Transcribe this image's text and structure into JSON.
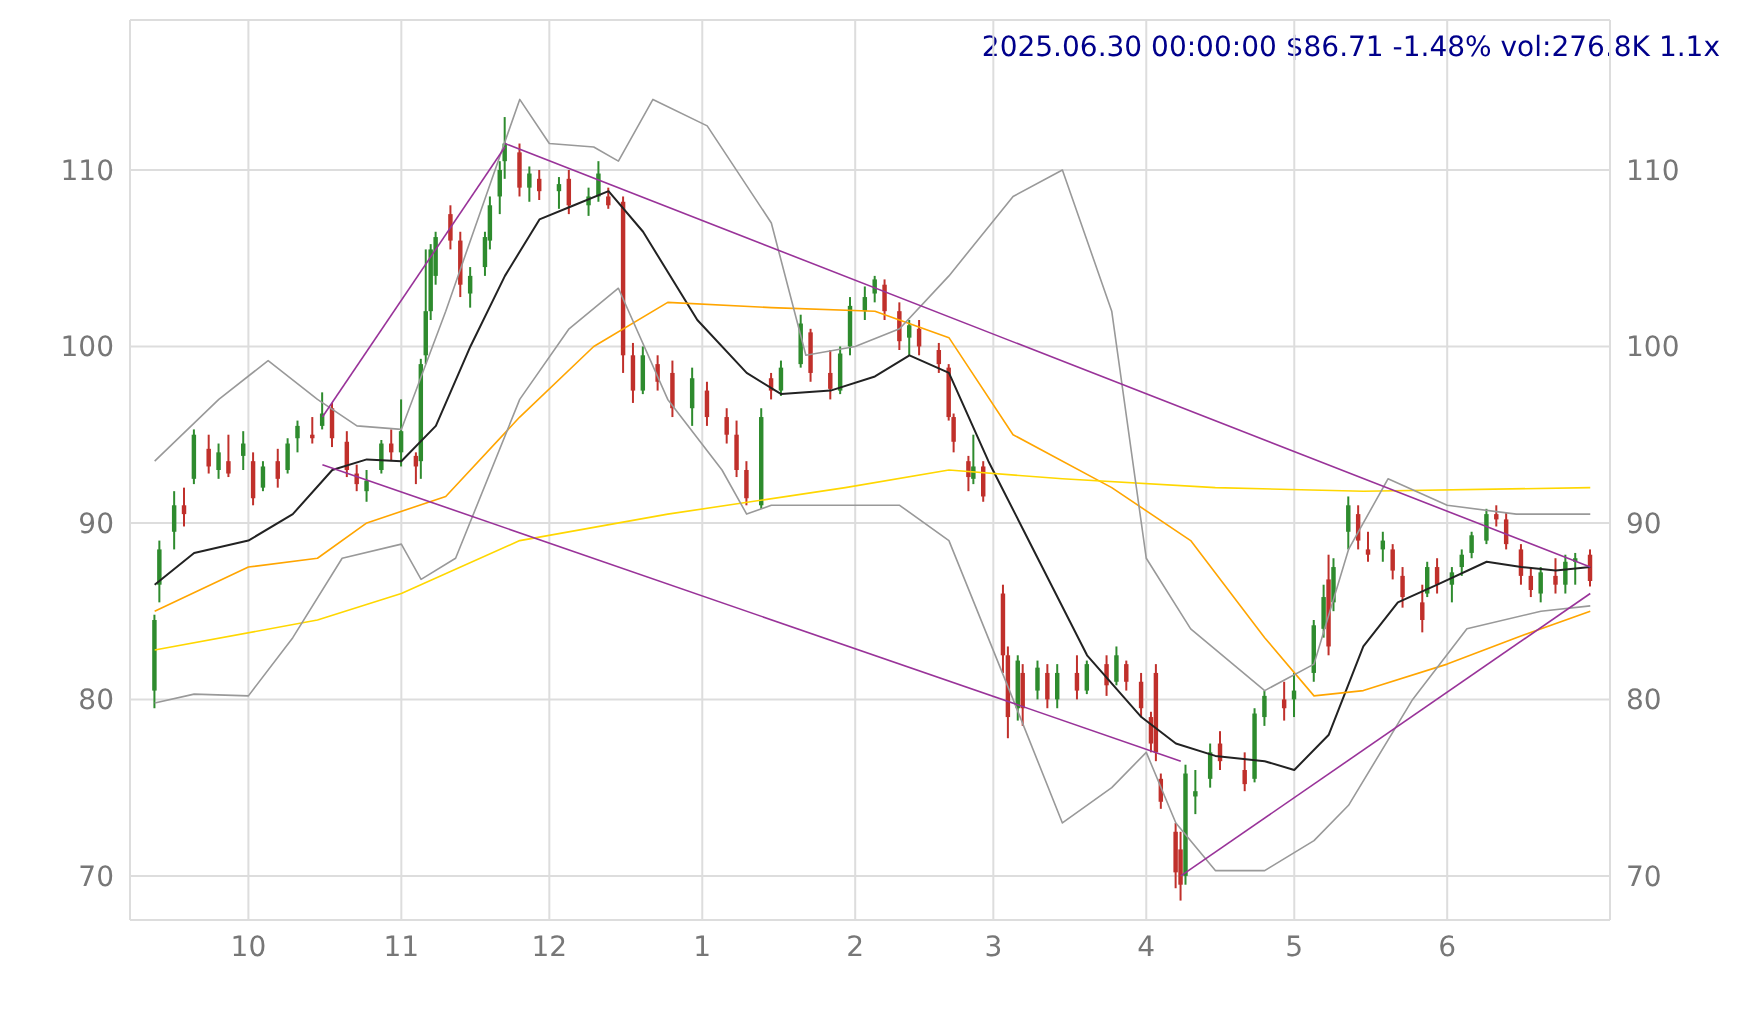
{
  "chart_data": {
    "type": "candlestick",
    "title": "2025.06.30 00:00:00 $86.71 -1.48% vol:276.8K 1.1x",
    "colors": [
      "#2e8b2e",
      "#2e8b2e",
      "#2e8b2e",
      "#c0302b",
      "#2e8b2e",
      "#c0302b",
      "#2e8b2e",
      "#c0302b",
      "#2e8b2e",
      "#c0302b",
      "#2e8b2e",
      "#c0302b",
      "#2e8b2e",
      "#2e8b2e",
      "#c0302b",
      "#2e8b2e",
      "#c0302b",
      "#c0302b",
      "#c0302b",
      "#2e8b2e",
      "#2e8b2e",
      "#c0302b",
      "#2e8b2e",
      "#c0302b",
      "#2e8b2e",
      "#2e8b2e",
      "#2e8b2e",
      "#2e8b2e",
      "#c0302b",
      "#c0302b",
      "#2e8b2e",
      "#2e8b2e",
      "#2e8b2e",
      "#2e8b2e",
      "#2e8b2e",
      "#c0302b",
      "#2e8b2e",
      "#c0302b",
      "#2e8b2e",
      "#c0302b",
      "#2e8b2e",
      "#2e8b2e",
      "#c0302b",
      "#c0302b",
      "#c0302b",
      "#2e8b2e",
      "#c0302b",
      "#c0302b",
      "#2e8b2e",
      "#c0302b",
      "#c0302b",
      "#c0302b",
      "#c0302b",
      "#2e8b2e",
      "#c0302b",
      "#2e8b2e",
      "#2e8b2e",
      "#c0302b",
      "#c0302b",
      "#2e8b2e",
      "#2e8b2e",
      "#2e8b2e",
      "#2e8b2e",
      "#c0302b",
      "#c0302b",
      "#2e8b2e",
      "#c0302b",
      "#c0302b",
      "#c0302b",
      "#c0302b",
      "#c0302b",
      "#2e8b2e",
      "#c0302b",
      "#c0302b",
      "#c0302b",
      "#2e8b2e",
      "#c0302b",
      "#2e8b2e",
      "#c0302b",
      "#2e8b2e",
      "#c0302b",
      "#2e8b2e",
      "#c0302b",
      "#2e8b2e",
      "#c0302b",
      "#c0302b",
      "#c0302b",
      "#c0302b",
      "#c0302b",
      "#c0302b",
      "#c0302b",
      "#2e8b2e",
      "#2e8b2e",
      "#2e8b2e",
      "#c0302b",
      "#c0302b",
      "#2e8b2e",
      "#2e8b2e",
      "#c0302b",
      "#2e8b2e",
      "#2e8b2e",
      "#2e8b2e",
      "#c0302b",
      "#2e8b2e",
      "#2e8b2e",
      "#c0302b",
      "#c0302b",
      "#2e8b2e",
      "#c0302b",
      "#c0302b",
      "#c0302b",
      "#2e8b2e",
      "#c0302b",
      "#2e8b2e",
      "#2e8b2e",
      "#2e8b2e",
      "#2e8b2e",
      "#c0302b",
      "#c0302b",
      "#c0302b",
      "#c0302b",
      "#2e8b2e",
      "#c0302b",
      "#2e8b2e",
      "#2e8b2e",
      "#c0302b"
    ],
    "x": [
      "2024-09-12",
      "2024-09-13",
      "2024-09-16",
      "2024-09-18",
      "2024-09-20",
      "2024-09-23",
      "2024-09-25",
      "2024-09-27",
      "2024-09-30",
      "2024-10-02",
      "2024-10-04",
      "2024-10-07",
      "2024-10-09",
      "2024-10-11",
      "2024-10-14",
      "2024-10-16",
      "2024-10-18",
      "2024-10-21",
      "2024-10-23",
      "2024-10-25",
      "2024-10-28",
      "2024-10-30",
      "2024-11-01",
      "2024-11-04",
      "2024-11-05",
      "2024-11-06",
      "2024-11-07",
      "2024-11-08",
      "2024-11-11",
      "2024-11-13",
      "2024-11-15",
      "2024-11-18",
      "2024-11-19",
      "2024-11-21",
      "2024-11-22",
      "2024-11-25",
      "2024-11-27",
      "2024-11-29",
      "2024-12-03",
      "2024-12-05",
      "2024-12-09",
      "2024-12-11",
      "2024-12-13",
      "2024-12-16",
      "2024-12-18",
      "2024-12-20",
      "2024-12-23",
      "2024-12-26",
      "2024-12-30",
      "2025-01-02",
      "2025-01-06",
      "2025-01-08",
      "2025-01-10",
      "2025-01-13",
      "2025-01-15",
      "2025-01-17",
      "2025-01-21",
      "2025-01-23",
      "2025-01-27",
      "2025-01-29",
      "2025-01-31",
      "2025-02-03",
      "2025-02-05",
      "2025-02-07",
      "2025-02-10",
      "2025-02-12",
      "2025-02-14",
      "2025-02-18",
      "2025-02-20",
      "2025-02-21",
      "2025-02-24",
      "2025-02-25",
      "2025-02-27",
      "2025-03-03",
      "2025-03-04",
      "2025-03-06",
      "2025-03-07",
      "2025-03-10",
      "2025-03-12",
      "2025-03-14",
      "2025-03-18",
      "2025-03-20",
      "2025-03-24",
      "2025-03-26",
      "2025-03-28",
      "2025-03-31",
      "2025-04-02",
      "2025-04-03",
      "2025-04-04",
      "2025-04-07",
      "2025-04-08",
      "2025-04-09",
      "2025-04-11",
      "2025-04-14",
      "2025-04-16",
      "2025-04-21",
      "2025-04-23",
      "2025-04-25",
      "2025-04-29",
      "2025-05-01",
      "2025-05-05",
      "2025-05-07",
      "2025-05-08",
      "2025-05-09",
      "2025-05-12",
      "2025-05-14",
      "2025-05-16",
      "2025-05-19",
      "2025-05-21",
      "2025-05-23",
      "2025-05-27",
      "2025-05-28",
      "2025-05-30",
      "2025-06-02",
      "2025-06-04",
      "2025-06-06",
      "2025-06-09",
      "2025-06-11",
      "2025-06-13",
      "2025-06-16",
      "2025-06-18",
      "2025-06-20",
      "2025-06-23",
      "2025-06-25",
      "2025-06-27",
      "2025-06-30"
    ],
    "ohlc": [
      [
        80.5,
        84.8,
        79.5,
        84.5
      ],
      [
        86.5,
        89.0,
        85.5,
        88.5
      ],
      [
        89.5,
        91.8,
        88.5,
        91.0
      ],
      [
        91.0,
        92.0,
        89.8,
        90.5
      ],
      [
        92.5,
        95.3,
        92.2,
        95.0
      ],
      [
        94.2,
        95.0,
        92.8,
        93.2
      ],
      [
        93.0,
        94.5,
        92.5,
        94.0
      ],
      [
        93.5,
        95.0,
        92.6,
        92.8
      ],
      [
        93.8,
        95.2,
        93.0,
        94.5
      ],
      [
        93.5,
        94.0,
        91.0,
        91.4
      ],
      [
        92.0,
        93.5,
        91.8,
        93.2
      ],
      [
        93.5,
        94.2,
        92.0,
        92.5
      ],
      [
        93.0,
        94.8,
        92.8,
        94.5
      ],
      [
        94.8,
        95.8,
        94.0,
        95.5
      ],
      [
        95.0,
        96.0,
        94.5,
        94.8
      ],
      [
        95.5,
        97.4,
        95.3,
        96.2
      ],
      [
        96.5,
        96.8,
        94.3,
        94.8
      ],
      [
        94.6,
        95.2,
        92.6,
        93.0
      ],
      [
        92.8,
        93.3,
        91.8,
        92.2
      ],
      [
        91.8,
        93.0,
        91.2,
        92.4
      ],
      [
        93.0,
        94.7,
        92.8,
        94.5
      ],
      [
        94.5,
        95.3,
        93.5,
        94.0
      ],
      [
        94.0,
        97.0,
        93.2,
        95.2
      ],
      [
        93.8,
        94.0,
        92.2,
        93.2
      ],
      [
        93.5,
        99.3,
        92.5,
        99.0
      ],
      [
        99.5,
        105.5,
        99.0,
        102.0
      ],
      [
        102.0,
        105.8,
        101.5,
        105.5
      ],
      [
        104.0,
        106.5,
        103.5,
        106.2
      ],
      [
        107.5,
        108.0,
        105.5,
        106.0
      ],
      [
        106.0,
        106.5,
        102.8,
        103.5
      ],
      [
        103.0,
        104.5,
        102.2,
        104.0
      ],
      [
        104.5,
        106.5,
        104.0,
        106.2
      ],
      [
        106.0,
        108.5,
        105.5,
        108.0
      ],
      [
        108.5,
        110.5,
        107.5,
        110.0
      ],
      [
        110.5,
        113.0,
        109.5,
        111.5
      ],
      [
        111.0,
        111.5,
        108.5,
        109.0
      ],
      [
        109.0,
        110.2,
        108.2,
        109.8
      ],
      [
        109.5,
        110.0,
        108.3,
        108.8
      ],
      [
        108.8,
        109.6,
        107.8,
        109.2
      ],
      [
        109.5,
        110.0,
        107.5,
        108.0
      ],
      [
        108.0,
        109.0,
        107.4,
        108.5
      ],
      [
        108.5,
        110.5,
        108.2,
        109.8
      ],
      [
        108.5,
        109.0,
        107.8,
        108.0
      ],
      [
        108.2,
        108.5,
        98.5,
        99.5
      ],
      [
        99.5,
        100.2,
        96.8,
        97.5
      ],
      [
        97.5,
        100.0,
        97.3,
        99.5
      ],
      [
        99.0,
        99.5,
        97.5,
        98.0
      ],
      [
        98.5,
        99.2,
        96.0,
        96.5
      ],
      [
        96.5,
        98.8,
        95.5,
        98.2
      ],
      [
        97.5,
        98.0,
        95.5,
        96.0
      ],
      [
        96.0,
        96.5,
        94.5,
        95.0
      ],
      [
        95.0,
        95.8,
        92.6,
        93.0
      ],
      [
        93.0,
        93.5,
        91.0,
        91.4
      ],
      [
        91.0,
        96.5,
        90.8,
        96.0
      ],
      [
        98.2,
        98.5,
        97.0,
        97.5
      ],
      [
        97.5,
        99.2,
        97.2,
        98.8
      ],
      [
        99.0,
        101.8,
        98.8,
        101.3
      ],
      [
        100.8,
        101.0,
        98.0,
        98.5
      ],
      [
        98.5,
        99.8,
        97.0,
        97.6
      ],
      [
        97.5,
        100.0,
        97.3,
        99.6
      ],
      [
        100.0,
        102.8,
        99.5,
        102.3
      ],
      [
        102.0,
        103.4,
        101.5,
        102.8
      ],
      [
        103.0,
        104.0,
        102.5,
        103.8
      ],
      [
        103.5,
        103.8,
        101.5,
        102.0
      ],
      [
        102.0,
        102.5,
        99.8,
        100.3
      ],
      [
        100.5,
        101.5,
        99.5,
        101.2
      ],
      [
        101.0,
        101.5,
        99.5,
        100.0
      ],
      [
        99.8,
        100.2,
        98.5,
        99.0
      ],
      [
        98.8,
        99.0,
        95.8,
        96.0
      ],
      [
        96.0,
        96.2,
        94.0,
        94.6
      ],
      [
        93.5,
        93.8,
        91.8,
        92.6
      ],
      [
        92.5,
        95.0,
        92.2,
        93.2
      ],
      [
        93.2,
        93.5,
        91.2,
        91.5
      ],
      [
        86.0,
        86.5,
        81.5,
        82.5
      ],
      [
        82.5,
        83.0,
        77.8,
        79.0
      ],
      [
        79.5,
        82.5,
        78.8,
        82.2
      ],
      [
        81.5,
        82.0,
        78.5,
        79.5
      ],
      [
        80.5,
        82.2,
        80.0,
        81.8
      ],
      [
        81.5,
        82.0,
        79.5,
        80.0
      ],
      [
        80.0,
        82.0,
        79.5,
        81.5
      ],
      [
        81.5,
        82.5,
        80.0,
        80.5
      ],
      [
        80.5,
        82.2,
        80.3,
        82.0
      ],
      [
        82.0,
        82.5,
        80.2,
        80.8
      ],
      [
        81.0,
        83.0,
        80.8,
        82.5
      ],
      [
        82.0,
        82.2,
        80.5,
        81.0
      ],
      [
        81.0,
        81.5,
        79.0,
        79.5
      ],
      [
        79.0,
        79.3,
        77.0,
        77.5
      ],
      [
        81.5,
        82.0,
        76.5,
        77.0
      ],
      [
        75.5,
        75.8,
        73.8,
        74.2
      ],
      [
        72.5,
        73.0,
        69.3,
        70.2
      ],
      [
        71.5,
        72.5,
        68.6,
        69.5
      ],
      [
        70.0,
        76.3,
        69.5,
        75.8
      ],
      [
        74.5,
        76.0,
        73.5,
        74.8
      ],
      [
        75.5,
        77.5,
        75.0,
        77.0
      ],
      [
        77.5,
        78.2,
        76.0,
        76.5
      ],
      [
        76.0,
        77.0,
        74.8,
        75.2
      ],
      [
        75.5,
        79.5,
        75.3,
        79.2
      ],
      [
        79.0,
        80.5,
        78.5,
        80.2
      ],
      [
        80.0,
        81.0,
        78.8,
        79.5
      ],
      [
        80.0,
        81.5,
        79.0,
        80.5
      ],
      [
        81.5,
        84.5,
        81.0,
        84.2
      ],
      [
        84.0,
        86.5,
        83.5,
        85.8
      ],
      [
        86.8,
        88.2,
        82.5,
        83.0
      ],
      [
        85.5,
        88.0,
        85.0,
        87.5
      ],
      [
        89.5,
        91.5,
        88.5,
        91.0
      ],
      [
        90.5,
        91.0,
        88.5,
        89.0
      ],
      [
        88.5,
        89.5,
        87.8,
        88.2
      ],
      [
        88.5,
        89.5,
        87.8,
        89.0
      ],
      [
        88.5,
        88.8,
        86.8,
        87.3
      ],
      [
        87.0,
        87.5,
        85.2,
        85.8
      ],
      [
        85.5,
        86.5,
        83.8,
        84.5
      ],
      [
        86.0,
        87.8,
        85.8,
        87.5
      ],
      [
        87.5,
        88.0,
        86.0,
        86.5
      ],
      [
        86.5,
        87.5,
        85.5,
        87.2
      ],
      [
        87.5,
        88.5,
        87.0,
        88.2
      ],
      [
        88.3,
        89.5,
        88.0,
        89.3
      ],
      [
        89.0,
        90.8,
        88.8,
        90.5
      ],
      [
        90.5,
        91.0,
        89.8,
        90.2
      ],
      [
        90.2,
        90.6,
        88.5,
        88.8
      ],
      [
        88.5,
        88.8,
        86.5,
        87.0
      ],
      [
        87.0,
        87.5,
        85.8,
        86.2
      ],
      [
        86.0,
        87.5,
        85.5,
        87.2
      ],
      [
        87.0,
        88.0,
        86.0,
        86.5
      ],
      [
        86.5,
        88.2,
        86.0,
        87.8
      ],
      [
        87.8,
        88.3,
        86.5,
        88.0
      ],
      [
        88.2,
        88.5,
        86.4,
        86.71
      ]
    ],
    "series": [
      {
        "type": "line",
        "color": "#222222",
        "x": [
          "2024-09-12",
          "2024-09-20",
          "2024-10-01",
          "2024-10-10",
          "2024-10-18",
          "2024-10-25",
          "2024-11-01",
          "2024-11-08",
          "2024-11-15",
          "2024-11-22",
          "2024-11-29",
          "2024-12-06",
          "2024-12-13",
          "2024-12-20",
          "2024-12-31",
          "2025-01-10",
          "2025-01-17",
          "2025-01-27",
          "2025-02-05",
          "2025-02-12",
          "2025-02-20",
          "2025-02-28",
          "2025-03-10",
          "2025-03-20",
          "2025-03-31",
          "2025-04-07",
          "2025-04-15",
          "2025-04-25",
          "2025-05-01",
          "2025-05-08",
          "2025-05-15",
          "2025-05-22",
          "2025-05-30",
          "2025-06-09",
          "2025-06-16",
          "2025-06-23",
          "2025-06-30"
        ],
        "values": [
          86.5,
          88.3,
          89.0,
          90.5,
          93.0,
          93.6,
          93.5,
          95.5,
          100,
          104,
          107.2,
          108.0,
          108.8,
          106.5,
          101.5,
          98.5,
          97.3,
          97.5,
          98.3,
          99.5,
          98.5,
          93.5,
          88,
          82.5,
          79,
          77.5,
          76.8,
          76.5,
          76.0,
          78,
          83,
          85.5,
          86.5,
          87.8,
          87.5,
          87.3,
          87.5
        ]
      },
      {
        "type": "line",
        "color": "#ffa500",
        "x": [
          "2024-09-12",
          "2024-10-01",
          "2024-10-15",
          "2024-10-25",
          "2024-11-10",
          "2024-11-25",
          "2024-12-10",
          "2024-12-25",
          "2025-01-15",
          "2025-02-05",
          "2025-02-20",
          "2025-03-05",
          "2025-03-25",
          "2025-04-10",
          "2025-04-25",
          "2025-05-05",
          "2025-05-15",
          "2025-06-01",
          "2025-06-15",
          "2025-06-30"
        ],
        "values": [
          85.0,
          87.5,
          88.0,
          90.0,
          91.5,
          96,
          100,
          102.5,
          102.2,
          102.0,
          100.5,
          95,
          92.0,
          89,
          83.5,
          80.2,
          80.5,
          82,
          83.5,
          85
        ]
      },
      {
        "type": "line",
        "color": "#ffd700",
        "x": [
          "2024-09-12",
          "2024-10-15",
          "2024-11-01",
          "2024-11-25",
          "2024-12-25",
          "2025-01-30",
          "2025-02-20",
          "2025-03-15",
          "2025-04-15",
          "2025-05-15",
          "2025-06-30"
        ],
        "values": [
          82.8,
          84.5,
          86,
          89,
          90.5,
          92.0,
          93.0,
          92.5,
          92.0,
          91.8,
          92.0
        ]
      },
      {
        "type": "line",
        "color": "#999999",
        "x": [
          "2024-09-12",
          "2024-09-25",
          "2024-10-05",
          "2024-10-15",
          "2024-10-23",
          "2024-11-01",
          "2024-11-10",
          "2024-11-20",
          "2024-11-25",
          "2024-12-01",
          "2024-12-10",
          "2024-12-15",
          "2024-12-22",
          "2025-01-02",
          "2025-01-15",
          "2025-01-22",
          "2025-02-01",
          "2025-02-10",
          "2025-02-20",
          "2025-03-05",
          "2025-03-15",
          "2025-03-25",
          "2025-04-01",
          "2025-04-10",
          "2025-04-25",
          "2025-05-05",
          "2025-05-12",
          "2025-05-20",
          "2025-06-01",
          "2025-06-15",
          "2025-06-30"
        ],
        "values": [
          93.5,
          97,
          99.2,
          97,
          95.5,
          95.3,
          102,
          110,
          114,
          111.5,
          111.3,
          110.5,
          114,
          112.5,
          107,
          99.5,
          100,
          101,
          104,
          108.5,
          110,
          102,
          88,
          84,
          80.5,
          82,
          88.5,
          92.5,
          91,
          90.5,
          90.5
        ]
      },
      {
        "type": "line",
        "color": "#999999",
        "x": [
          "2024-09-12",
          "2024-09-20",
          "2024-10-01",
          "2024-10-10",
          "2024-10-20",
          "2024-11-01",
          "2024-11-05",
          "2024-11-12",
          "2024-11-25",
          "2024-12-05",
          "2024-12-15",
          "2024-12-25",
          "2025-01-05",
          "2025-01-10",
          "2025-01-15",
          "2025-01-25",
          "2025-02-10",
          "2025-02-20",
          "2025-03-05",
          "2025-03-15",
          "2025-03-25",
          "2025-04-01",
          "2025-04-07",
          "2025-04-15",
          "2025-04-25",
          "2025-05-05",
          "2025-05-12",
          "2025-05-25",
          "2025-06-05",
          "2025-06-20",
          "2025-06-30"
        ],
        "values": [
          79.8,
          80.3,
          80.2,
          83.5,
          88,
          88.8,
          86.8,
          88,
          97,
          101,
          103.3,
          97,
          93,
          90.5,
          91,
          91.0,
          91.0,
          89,
          80,
          73,
          75,
          77,
          73,
          70.3,
          70.3,
          72,
          74,
          80,
          84,
          85,
          85.3
        ]
      },
      {
        "type": "line",
        "color": "#993399",
        "x": [
          "2024-10-16",
          "2024-11-22"
        ],
        "values": [
          96,
          111.3
        ]
      },
      {
        "type": "line",
        "color": "#993399",
        "x": [
          "2024-11-22",
          "2025-06-30"
        ],
        "values": [
          111.5,
          87.5
        ]
      },
      {
        "type": "line",
        "color": "#993399",
        "x": [
          "2024-10-16",
          "2025-04-08"
        ],
        "values": [
          93.3,
          76.5
        ]
      },
      {
        "type": "line",
        "color": "#993399",
        "x": [
          "2025-04-08",
          "2025-06-30"
        ],
        "values": [
          70,
          86
        ]
      }
    ],
    "xlim": [
      "2024-09-07",
      "2025-07-04"
    ],
    "xticks": [
      {
        "value": "2024-10-01",
        "label": "10"
      },
      {
        "value": "2024-11-01",
        "label": "11"
      },
      {
        "value": "2024-12-01",
        "label": "12"
      },
      {
        "value": "2025-01-01",
        "label": "1"
      },
      {
        "value": "2025-02-01",
        "label": "2"
      },
      {
        "value": "2025-03-01",
        "label": "3"
      },
      {
        "value": "2025-04-01",
        "label": "4"
      },
      {
        "value": "2025-05-01",
        "label": "5"
      },
      {
        "value": "2025-06-01",
        "label": "6"
      }
    ],
    "ylim": [
      67.5,
      118.5
    ],
    "yticks": [
      70,
      80,
      90,
      100,
      110
    ],
    "y2lim": [
      67.5,
      118.5
    ],
    "y2ticks": [
      70,
      80,
      90,
      100,
      110
    ],
    "grid": true
  }
}
